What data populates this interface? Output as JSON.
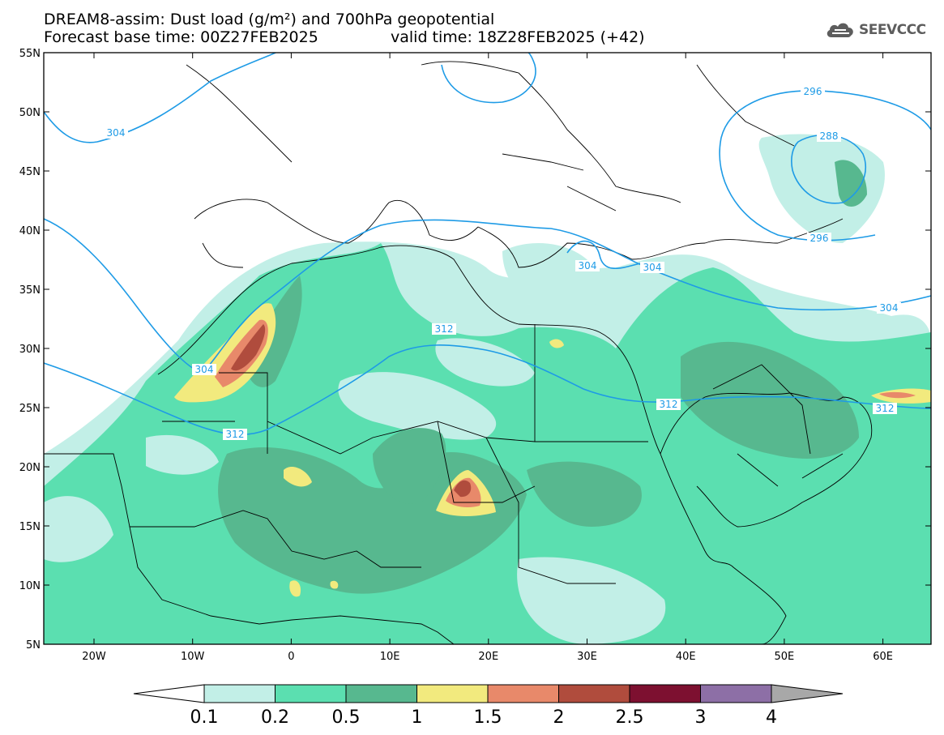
{
  "header": {
    "title_line1": "DREAM8-assim: Dust load (g/m²) and 700hPa geopotential",
    "base_time": "Forecast base time: 00Z27FEB2025",
    "valid_time": "valid time: 18Z28FEB2025 (+42)"
  },
  "logo": {
    "text": "SEEVCCC",
    "icon": "cloud-icon"
  },
  "axes": {
    "lat_labels": [
      "55N",
      "50N",
      "45N",
      "40N",
      "35N",
      "30N",
      "25N",
      "20N",
      "15N",
      "10N",
      "5N"
    ],
    "lon_labels": [
      "20W",
      "10W",
      "0",
      "10E",
      "20E",
      "30E",
      "40E",
      "50E",
      "60E"
    ]
  },
  "contours": {
    "color": "#1e9be6",
    "labels": [
      "304",
      "312",
      "304",
      "312",
      "288",
      "296",
      "296",
      "304",
      "304",
      "304",
      "312",
      "312"
    ]
  },
  "colorbar": {
    "ticks": [
      "0.1",
      "0.2",
      "0.5",
      "1",
      "1.5",
      "2",
      "2.5",
      "3",
      "4"
    ],
    "colors": [
      "#c2efe7",
      "#5bdfb0",
      "#57b88f",
      "#f2ea7e",
      "#e8896a",
      "#b04c3d",
      "#7d1030",
      "#8d6fa6",
      "#a8a8a8"
    ]
  }
}
